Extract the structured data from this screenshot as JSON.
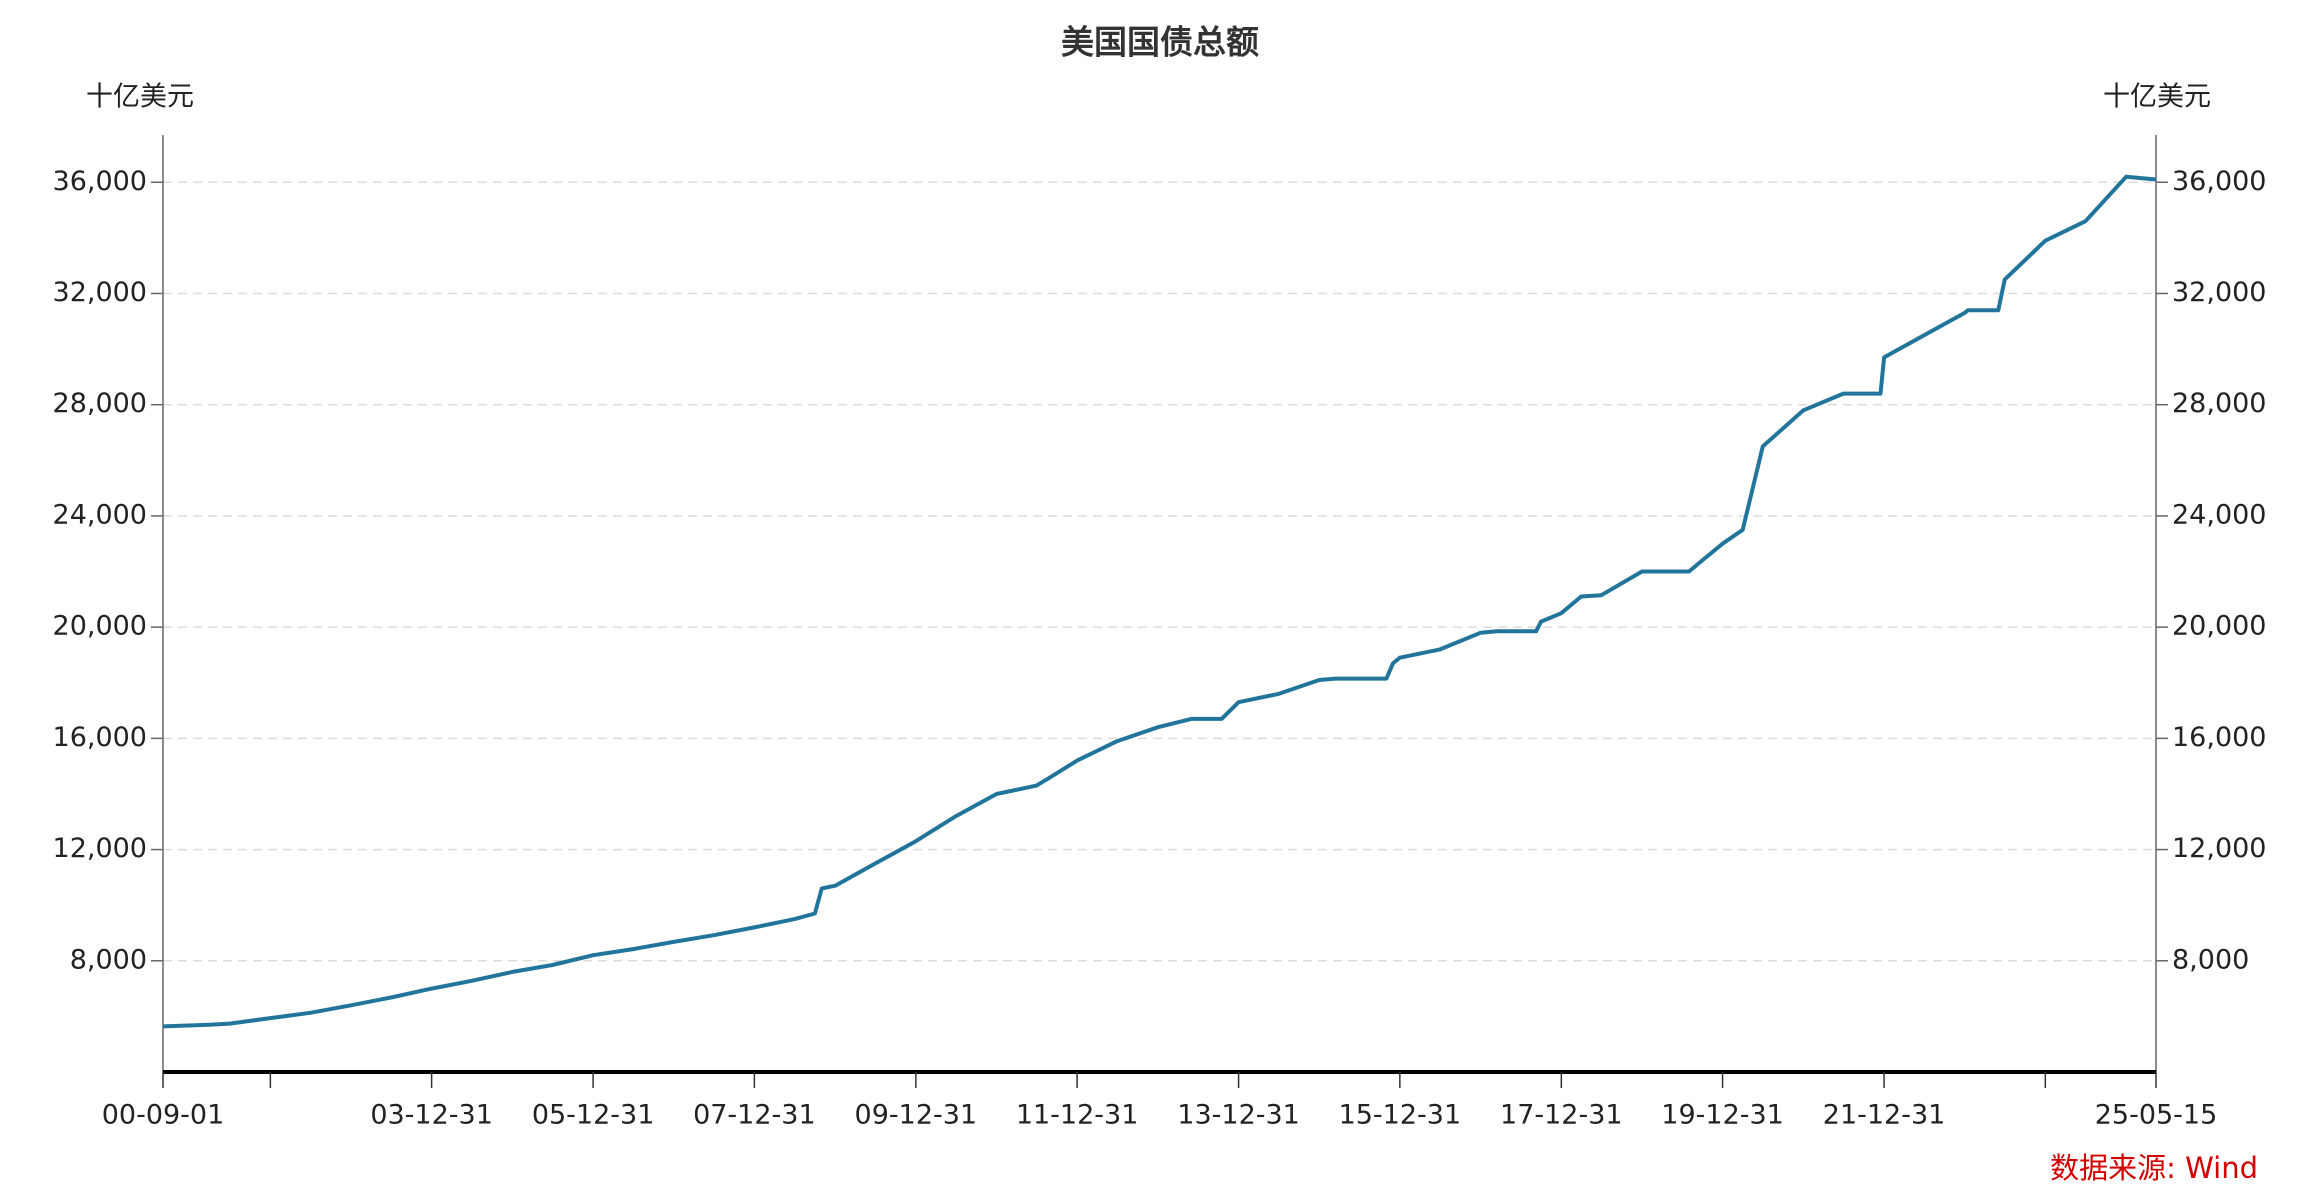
{
  "chart_data": {
    "type": "line",
    "title": "美国国债总额",
    "y_label": "十亿美元",
    "y2_label": "十亿美元",
    "source": "数据来源: Wind",
    "color": "#21759b",
    "grid": true,
    "x": [
      "00-09-01",
      "01-03-31",
      "01-06-30",
      "01-12-31",
      "02-06-30",
      "02-12-31",
      "03-06-30",
      "03-12-31",
      "04-06-30",
      "04-12-31",
      "05-06-30",
      "05-12-31",
      "06-06-30",
      "06-12-31",
      "07-06-30",
      "07-12-31",
      "08-06-30",
      "08-09-30",
      "08-10-31",
      "08-12-31",
      "09-06-30",
      "09-12-31",
      "10-06-30",
      "10-12-31",
      "11-06-30",
      "11-08-31",
      "11-12-31",
      "12-06-30",
      "12-12-31",
      "13-05-31",
      "13-10-15",
      "13-12-31",
      "14-06-30",
      "14-12-31",
      "15-03-15",
      "15-10-31",
      "15-11-30",
      "15-12-31",
      "16-06-30",
      "16-12-31",
      "17-03-15",
      "17-09-08",
      "17-09-30",
      "17-12-31",
      "18-03-31",
      "18-06-30",
      "18-12-31",
      "19-03-31",
      "19-08-01",
      "19-09-30",
      "19-12-31",
      "20-03-31",
      "20-06-30",
      "20-12-31",
      "21-06-30",
      "21-12-15",
      "21-12-31",
      "22-06-30",
      "22-12-31",
      "23-01-15",
      "23-06-01",
      "23-06-30",
      "23-12-31",
      "24-06-30",
      "24-12-31",
      "25-05-15"
    ],
    "values": [
      5640,
      5700,
      5740,
      5940,
      6130,
      6400,
      6680,
      7000,
      7280,
      7600,
      7850,
      8200,
      8420,
      8680,
      8920,
      9200,
      9500,
      9700,
      10600,
      10700,
      11500,
      12300,
      13200,
      14000,
      14300,
      14600,
      15200,
      15900,
      16400,
      16700,
      16700,
      17300,
      17600,
      18100,
      18150,
      18150,
      18700,
      18900,
      19200,
      19800,
      19850,
      19850,
      20200,
      20500,
      21100,
      21150,
      22000,
      22000,
      22000,
      22400,
      23000,
      23500,
      26500,
      27800,
      28400,
      28400,
      29700,
      30500,
      31300,
      31400,
      31400,
      32500,
      33900,
      34600,
      36200,
      36100
    ],
    "xlim": [
      "00-09-01",
      "25-05-15"
    ],
    "xticks": [
      "00-09-01",
      {
        "value": "01-12-31",
        "label": null
      },
      "03-12-31",
      "05-12-31",
      "07-12-31",
      "09-12-31",
      "11-12-31",
      "13-12-31",
      "15-12-31",
      "17-12-31",
      "19-12-31",
      "21-12-31",
      {
        "value": "23-12-31",
        "label": null
      },
      "25-05-15"
    ],
    "ylim": [
      4000,
      37700
    ],
    "yticks": [
      {
        "value": 8000,
        "label": "8,000"
      },
      {
        "value": 12000,
        "label": "12,000"
      },
      {
        "value": 16000,
        "label": "16,000"
      },
      {
        "value": 20000,
        "label": "20,000"
      },
      {
        "value": 24000,
        "label": "24,000"
      },
      {
        "value": 28000,
        "label": "28,000"
      },
      {
        "value": 32000,
        "label": "32,000"
      },
      {
        "value": 36000,
        "label": "36,000"
      }
    ],
    "y2lim": [
      4000,
      37700
    ],
    "y2ticks": [
      {
        "value": 8000,
        "label": "8,000"
      },
      {
        "value": 12000,
        "label": "12,000"
      },
      {
        "value": 16000,
        "label": "16,000"
      },
      {
        "value": 20000,
        "label": "20,000"
      },
      {
        "value": 24000,
        "label": "24,000"
      },
      {
        "value": 28000,
        "label": "28,000"
      },
      {
        "value": 32000,
        "label": "32,000"
      },
      {
        "value": 36000,
        "label": "36,000"
      }
    ]
  }
}
